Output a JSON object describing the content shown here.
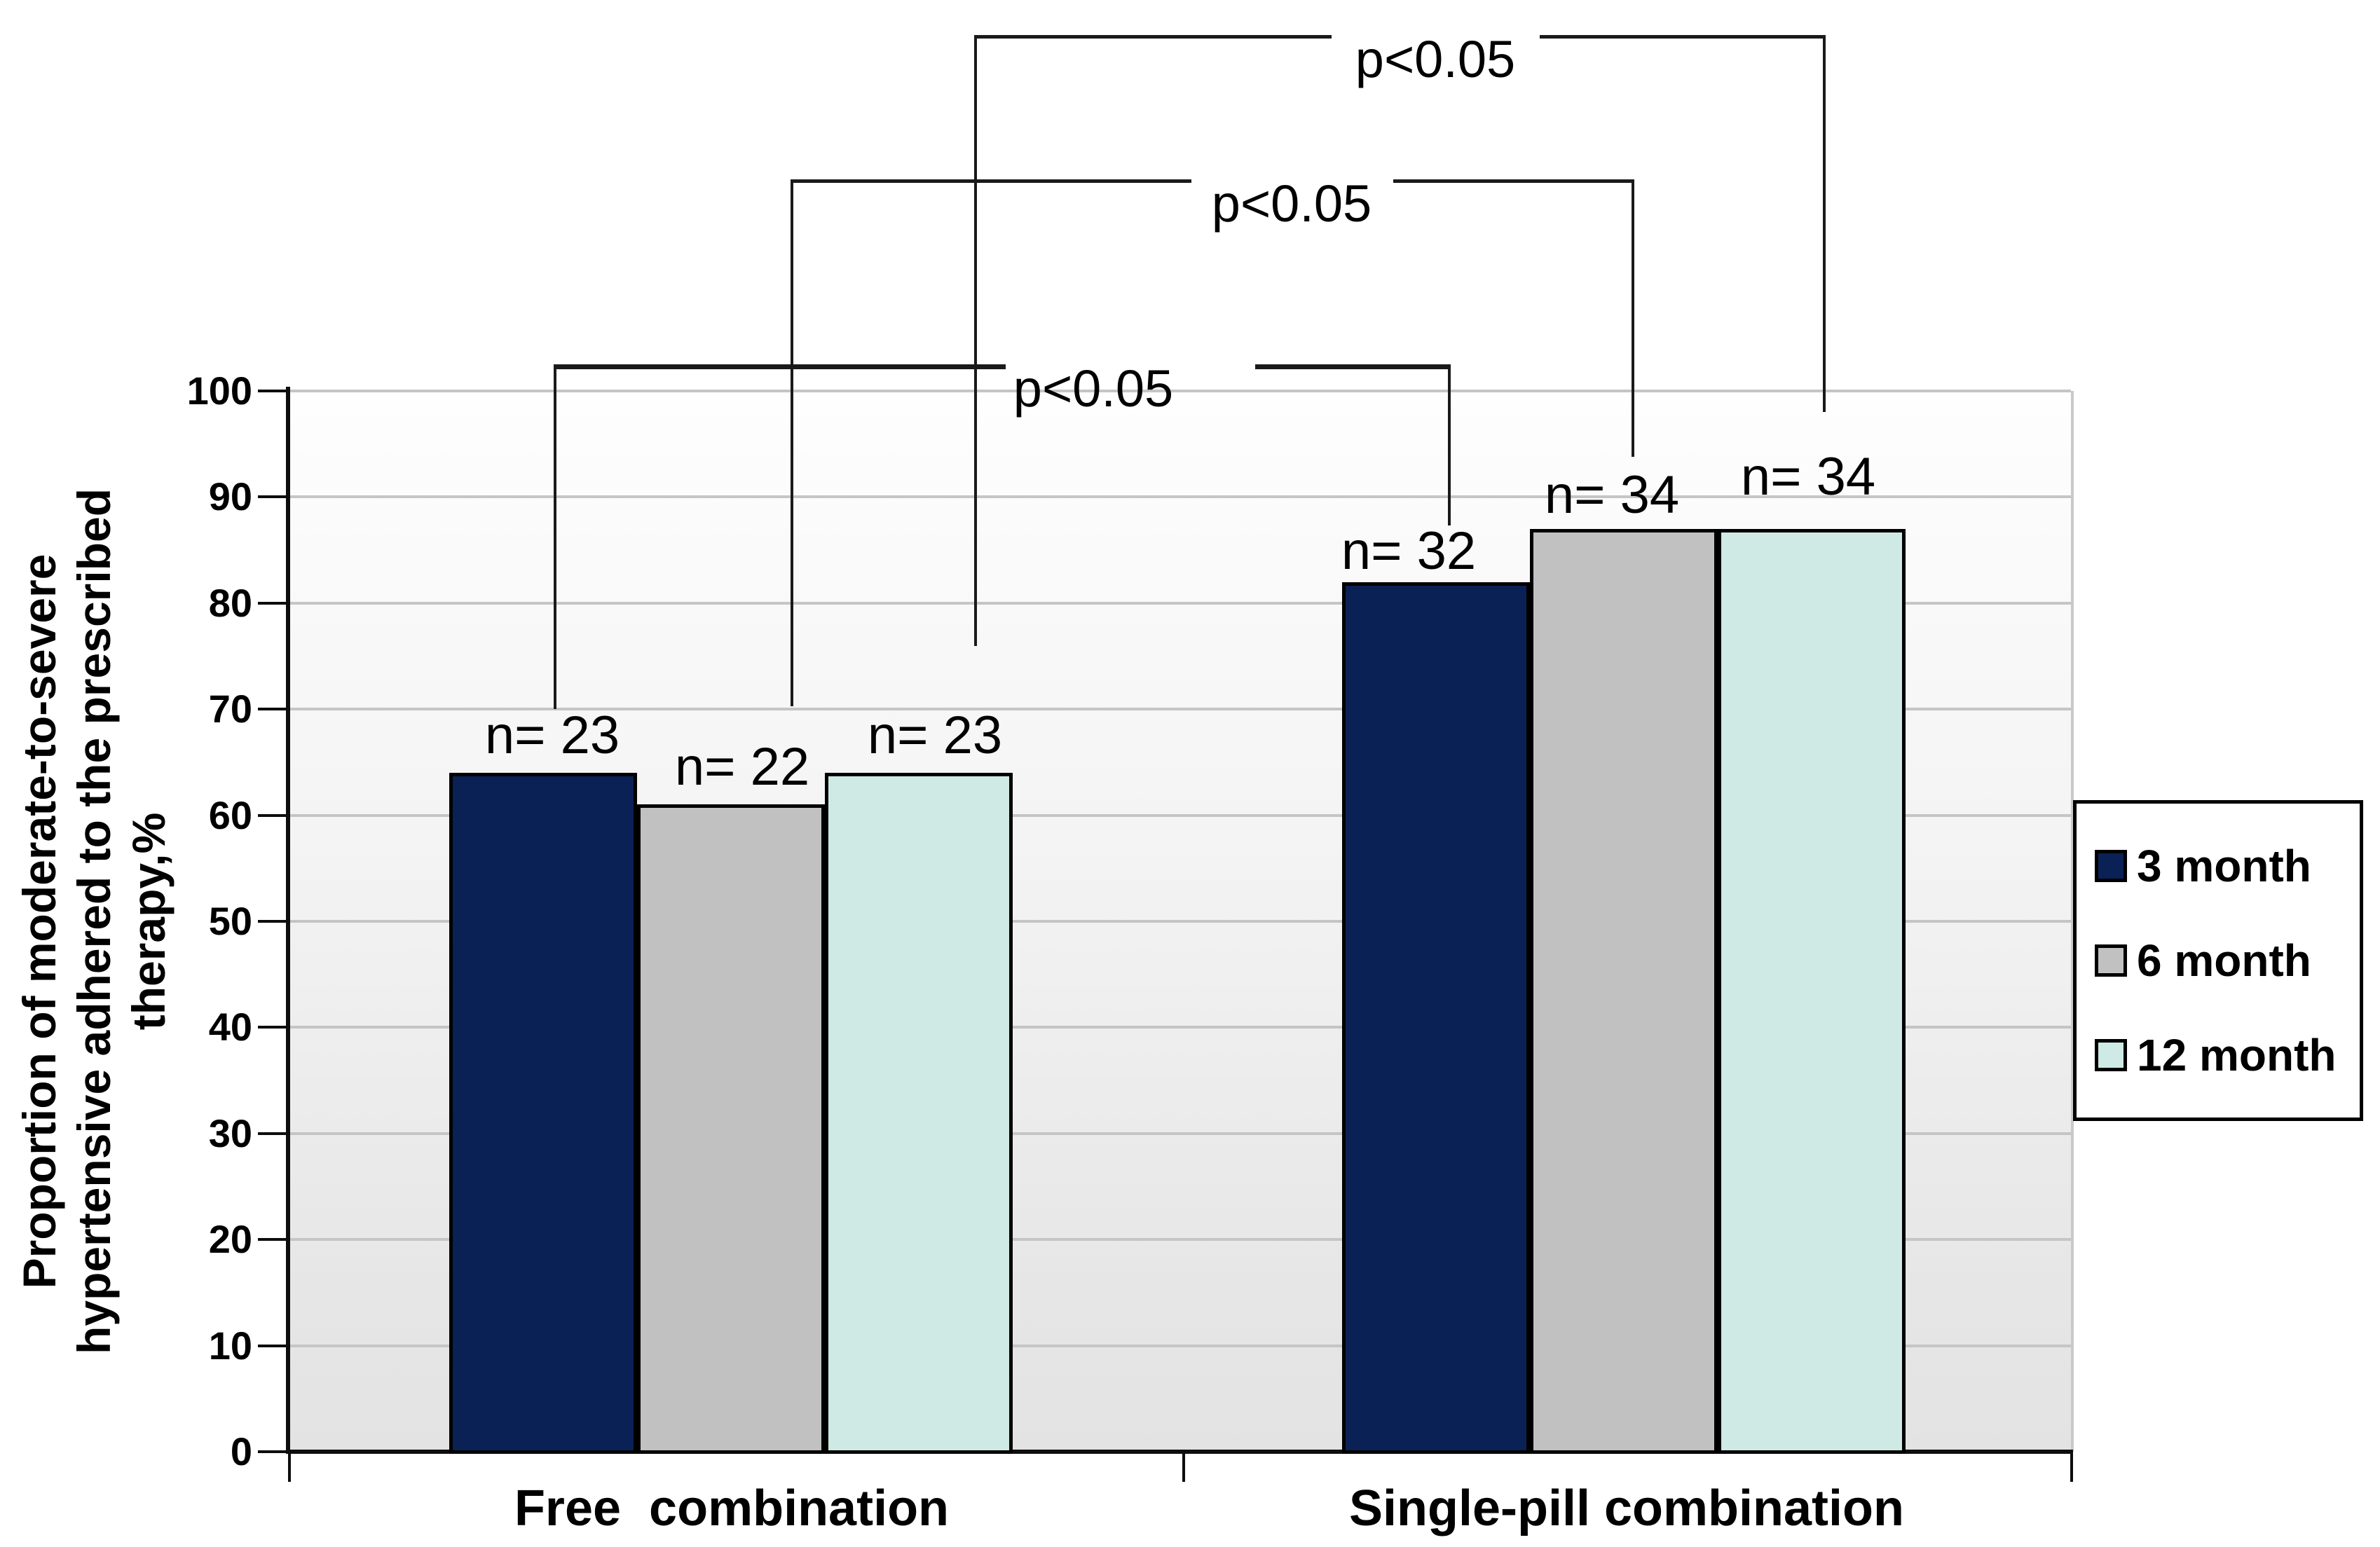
{
  "chart_data": {
    "type": "bar",
    "title": "",
    "categories": [
      "Free  combination",
      "Single-pill combination"
    ],
    "series": [
      {
        "name": "3 month",
        "color": "#0a2155",
        "values": [
          64,
          82
        ],
        "n_labels": [
          "n= 23",
          "n= 32"
        ]
      },
      {
        "name": "6 month",
        "color": "#c1c1c1",
        "values": [
          61,
          87
        ],
        "n_labels": [
          "n= 22",
          "n= 34"
        ]
      },
      {
        "name": "12 month",
        "color": "#cfe9e4",
        "values": [
          64,
          87
        ],
        "n_labels": [
          "n= 23",
          "n= 34"
        ]
      }
    ],
    "ylabel_lines": [
      "Proportion of moderate-to-severe",
      "hypertensive adhered to the prescribed",
      "therapy,%"
    ],
    "yaxis": {
      "min": 0,
      "max": 100,
      "step": 10,
      "ticks": [
        100,
        90,
        80,
        70,
        60,
        50,
        40,
        30,
        20,
        10,
        0
      ]
    },
    "grid": true,
    "legend_position": "right",
    "annotations": [
      {
        "label": "p<0.05",
        "connects": [
          "Free combination 3 month",
          "Single-pill combination 3 month"
        ]
      },
      {
        "label": "p<0.05",
        "connects": [
          "Free combination 6 month",
          "Single-pill combination 6 month"
        ]
      },
      {
        "label": "p<0.05",
        "connects": [
          "Free combination 12 month",
          "Single-pill combination 12 month"
        ]
      }
    ]
  },
  "legend": {
    "items": [
      "3 month",
      "6 month",
      "12 month"
    ]
  }
}
